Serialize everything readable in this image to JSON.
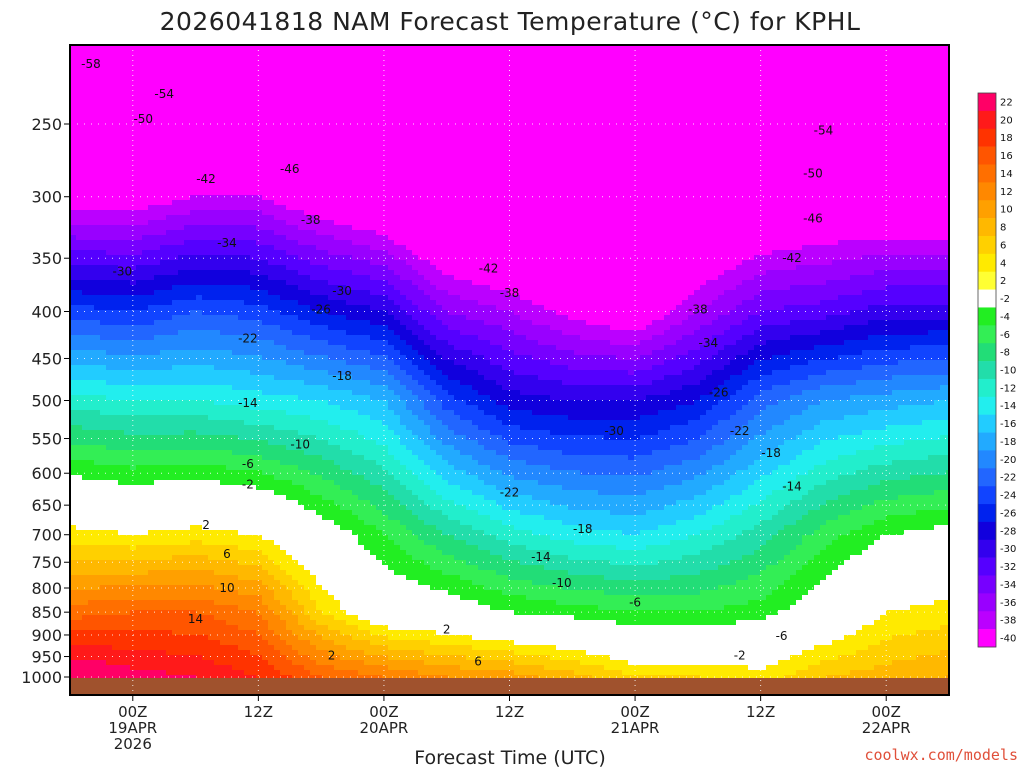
{
  "title": "2026041818 NAM Forecast Temperature (°C) for KPHL",
  "credit": "coolwx.com/models",
  "chart_data": {
    "type": "heatmap",
    "title": "2026041818 NAM Forecast Temperature (°C) for KPHL",
    "xlabel": "Forecast Time (UTC)",
    "ylabel": "",
    "y_scale": "log",
    "y_reversed": true,
    "ylim": [
      1000,
      200
    ],
    "xlim_hours": [
      -6,
      78
    ],
    "y_ticks": [
      250,
      300,
      350,
      400,
      450,
      500,
      550,
      600,
      650,
      700,
      750,
      800,
      850,
      900,
      950,
      1000
    ],
    "x_ticks": [
      {
        "hour": 0,
        "lines": [
          "00Z",
          "19APR",
          "2026"
        ]
      },
      {
        "hour": 12,
        "lines": [
          "12Z"
        ]
      },
      {
        "hour": 24,
        "lines": [
          "00Z",
          "20APR"
        ]
      },
      {
        "hour": 36,
        "lines": [
          "12Z"
        ]
      },
      {
        "hour": 48,
        "lines": [
          "00Z",
          "21APR"
        ]
      },
      {
        "hour": 60,
        "lines": [
          "12Z"
        ]
      },
      {
        "hour": 72,
        "lines": [
          "00Z",
          "22APR"
        ]
      }
    ],
    "colorbar": {
      "levels": [
        22,
        20,
        18,
        16,
        14,
        12,
        10,
        8,
        6,
        4,
        2,
        -2,
        -4,
        -6,
        -8,
        -10,
        -12,
        -14,
        -16,
        -18,
        -20,
        -22,
        -24,
        -26,
        -28,
        -30,
        -32,
        -34,
        -36,
        -38,
        -40
      ],
      "colors": [
        "#ff0066",
        "#ff1a1a",
        "#ff3300",
        "#ff5500",
        "#ff6f00",
        "#ff8800",
        "#ffa000",
        "#ffb800",
        "#ffd000",
        "#ffea00",
        "#ffff33",
        "#ffffff",
        "#22ee22",
        "#33ee55",
        "#22dd77",
        "#22ddaa",
        "#22eecc",
        "#22eeee",
        "#22ccff",
        "#22aaff",
        "#2288ff",
        "#2266ff",
        "#1144ff",
        "#0022ee",
        "#1100dd",
        "#3300ee",
        "#5500ff",
        "#7700ff",
        "#9900ff",
        "#bb00ff",
        "#ff00ff"
      ]
    },
    "profiles": [
      {
        "hour": -6,
        "surface": 23,
        "t850": 13,
        "t700": 3,
        "t500": -13,
        "t400": -25,
        "t300": -42,
        "t250": -51
      },
      {
        "hour": 0,
        "surface": 21,
        "t850": 14,
        "t700": 2,
        "t500": -14,
        "t400": -26,
        "t300": -42,
        "t250": -50
      },
      {
        "hour": 6,
        "surface": 20,
        "t850": 14,
        "t700": 3,
        "t500": -14,
        "t400": -24,
        "t300": -40,
        "t250": -49
      },
      {
        "hour": 12,
        "surface": 18,
        "t850": 12,
        "t700": 2,
        "t500": -15,
        "t400": -25,
        "t300": -40,
        "t250": -50
      },
      {
        "hour": 18,
        "surface": 14,
        "t850": 4,
        "t700": -2,
        "t500": -16,
        "t400": -28,
        "t300": -43,
        "t250": -51
      },
      {
        "hour": 24,
        "surface": 12,
        "t850": -1,
        "t700": -6,
        "t500": -18,
        "t400": -30,
        "t300": -45,
        "t250": -53
      },
      {
        "hour": 30,
        "surface": 10,
        "t850": -2,
        "t700": -10,
        "t500": -25,
        "t400": -36,
        "t300": -49,
        "t250": -55
      },
      {
        "hour": 36,
        "surface": 9,
        "t850": -4,
        "t700": -13,
        "t500": -29,
        "t400": -38,
        "t300": -50,
        "t250": -55
      },
      {
        "hour": 42,
        "surface": 7,
        "t850": -5,
        "t700": -15,
        "t500": -30,
        "t400": -41,
        "t300": -52,
        "t250": -56
      },
      {
        "hour": 48,
        "surface": 4,
        "t850": -6,
        "t700": -16,
        "t500": -30,
        "t400": -43,
        "t300": -52,
        "t250": -55
      },
      {
        "hour": 54,
        "surface": 4,
        "t850": -6,
        "t700": -14,
        "t500": -28,
        "t400": -38,
        "t300": -48,
        "t250": -54
      },
      {
        "hour": 60,
        "surface": 3,
        "t850": -5,
        "t700": -11,
        "t500": -23,
        "t400": -34,
        "t300": -46,
        "t250": -52
      },
      {
        "hour": 66,
        "surface": 6,
        "t850": -2,
        "t700": -7,
        "t500": -20,
        "t400": -33,
        "t300": -45,
        "t250": -52
      },
      {
        "hour": 72,
        "surface": 7,
        "t850": 2,
        "t700": -4,
        "t500": -19,
        "t400": -31,
        "t300": -45,
        "t250": -52
      },
      {
        "hour": 78,
        "surface": 8,
        "t850": 3,
        "t700": -3,
        "t500": -18,
        "t400": -31,
        "t300": -45,
        "t250": -52
      }
    ],
    "contour_labels": [
      {
        "text": "-58",
        "hour": -4,
        "p": 215
      },
      {
        "text": "-54",
        "hour": 3,
        "p": 232
      },
      {
        "text": "-50",
        "hour": 1,
        "p": 247
      },
      {
        "text": "-46",
        "hour": 15,
        "p": 280
      },
      {
        "text": "-42",
        "hour": 7,
        "p": 287
      },
      {
        "text": "-38",
        "hour": 17,
        "p": 318
      },
      {
        "text": "-34",
        "hour": 9,
        "p": 337
      },
      {
        "text": "-30",
        "hour": -1,
        "p": 362
      },
      {
        "text": "-42",
        "hour": 34,
        "p": 359
      },
      {
        "text": "-38",
        "hour": 36,
        "p": 382
      },
      {
        "text": "-30",
        "hour": 20,
        "p": 380
      },
      {
        "text": "-26",
        "hour": 18,
        "p": 398
      },
      {
        "text": "-22",
        "hour": 11,
        "p": 428
      },
      {
        "text": "-18",
        "hour": 20,
        "p": 470
      },
      {
        "text": "-14",
        "hour": 11,
        "p": 503
      },
      {
        "text": "-10",
        "hour": 16,
        "p": 558
      },
      {
        "text": "-6",
        "hour": 11,
        "p": 586
      },
      {
        "text": "-2",
        "hour": 11,
        "p": 617
      },
      {
        "text": "-38",
        "hour": 54,
        "p": 398
      },
      {
        "text": "-34",
        "hour": 55,
        "p": 433
      },
      {
        "text": "-54",
        "hour": 66,
        "p": 254
      },
      {
        "text": "-50",
        "hour": 65,
        "p": 283
      },
      {
        "text": "-46",
        "hour": 65,
        "p": 317
      },
      {
        "text": "-42",
        "hour": 63,
        "p": 350
      },
      {
        "text": "-30",
        "hour": 46,
        "p": 540
      },
      {
        "text": "-26",
        "hour": 56,
        "p": 490
      },
      {
        "text": "-22",
        "hour": 58,
        "p": 540
      },
      {
        "text": "-18",
        "hour": 61,
        "p": 570
      },
      {
        "text": "-14",
        "hour": 63,
        "p": 620
      },
      {
        "text": "-22",
        "hour": 36,
        "p": 630
      },
      {
        "text": "-18",
        "hour": 43,
        "p": 690
      },
      {
        "text": "-14",
        "hour": 39,
        "p": 740
      },
      {
        "text": "-10",
        "hour": 41,
        "p": 790
      },
      {
        "text": "-6",
        "hour": 48,
        "p": 830
      },
      {
        "text": "-6",
        "hour": 62,
        "p": 902
      },
      {
        "text": "-2",
        "hour": 58,
        "p": 948
      },
      {
        "text": "2",
        "hour": 30,
        "p": 888
      },
      {
        "text": "2",
        "hour": 19,
        "p": 948
      },
      {
        "text": "6",
        "hour": 33,
        "p": 962
      },
      {
        "text": "2",
        "hour": 7,
        "p": 683
      },
      {
        "text": "6",
        "hour": 9,
        "p": 735
      },
      {
        "text": "10",
        "hour": 9,
        "p": 800
      },
      {
        "text": "14",
        "hour": 6,
        "p": 865
      }
    ]
  }
}
